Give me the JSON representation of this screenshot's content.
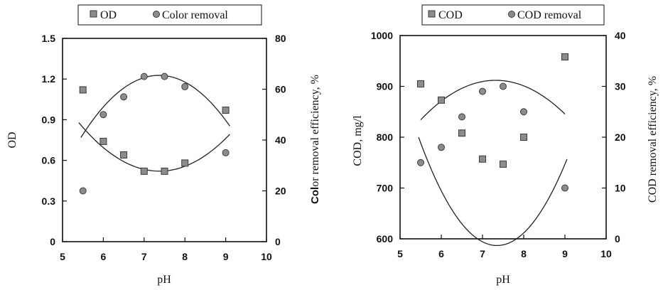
{
  "chart_data": [
    {
      "type": "scatter",
      "xlabel": "pH",
      "ylabel_left": "OD",
      "ylabel_right_bold": "Col",
      "ylabel_right_rest": "or removal efficiency, %",
      "xlim": [
        5,
        10
      ],
      "ylim_left": [
        0,
        1.5
      ],
      "ylim_right": [
        0,
        80
      ],
      "x_ticks": [
        5,
        6,
        7,
        8,
        9,
        10
      ],
      "y_ticks_left": [
        0,
        0.3,
        0.6,
        0.9,
        1.2,
        1.5
      ],
      "y_tick_labels_left": [
        "0",
        "0.3",
        "0.6",
        "0.9",
        "1.2",
        "1.5"
      ],
      "y_ticks_right": [
        0,
        20,
        40,
        60,
        80
      ],
      "series": [
        {
          "name": "OD",
          "marker": "square",
          "axis": "left",
          "x": [
            5.5,
            6,
            6.5,
            7,
            7.5,
            8,
            9
          ],
          "y": [
            1.12,
            0.74,
            0.64,
            0.52,
            0.52,
            0.58,
            0.97
          ]
        },
        {
          "name": "Color removal",
          "marker": "circle",
          "axis": "right",
          "x": [
            5.5,
            6,
            6.5,
            7,
            7.5,
            8,
            9
          ],
          "y": [
            20,
            50,
            57,
            65,
            65,
            61,
            35
          ]
        }
      ],
      "fits": [
        {
          "axis": "left",
          "coeffs": [
            5.5,
            -1.35,
            0.0915
          ],
          "xrange": [
            5.4,
            9.1
          ]
        },
        {
          "axis": "right",
          "coeffs": [
            -295.6,
            98.0,
            -6.65
          ],
          "xrange": [
            5.45,
            9.1
          ]
        }
      ],
      "grid": false,
      "legend": "top"
    },
    {
      "type": "scatter",
      "xlabel": "pH",
      "ylabel_left": "COD, mg/l",
      "ylabel_right": "COD removal efficiency, %",
      "xlim": [
        5,
        10
      ],
      "ylim_left": [
        600,
        1000
      ],
      "ylim_right": [
        0,
        40
      ],
      "x_ticks": [
        5,
        6,
        7,
        8,
        9,
        10
      ],
      "y_ticks_left": [
        600,
        700,
        800,
        900,
        1000
      ],
      "y_ticks_right": [
        0,
        10,
        20,
        30,
        40
      ],
      "series": [
        {
          "name": "COD",
          "marker": "square",
          "axis": "left",
          "x": [
            5.5,
            6,
            6.5,
            7,
            7.5,
            8,
            9
          ],
          "y": [
            905,
            873,
            808,
            757,
            747,
            800,
            958
          ]
        },
        {
          "name": "COD removal",
          "marker": "circle",
          "axis": "right",
          "x": [
            5.5,
            6,
            6.5,
            7,
            7.5,
            8,
            9
          ],
          "y": [
            15,
            18,
            24,
            29,
            30,
            25,
            10
          ]
        }
      ],
      "fits": [
        {
          "axis": "left",
          "coeffs": [
            3770,
            -866,
            58.9
          ],
          "xrange": [
            5.45,
            9.05
          ]
        },
        {
          "axis": "right",
          "coeffs": [
            -94.7,
            34.4,
            -2.35
          ],
          "xrange": [
            5.5,
            9.0
          ]
        }
      ],
      "grid": false,
      "legend": "top"
    }
  ],
  "colors": {
    "marker_fill": "#8c8c8c",
    "marker_stroke": "#3a3a3a",
    "line": "#222222",
    "frame": "#111111"
  }
}
